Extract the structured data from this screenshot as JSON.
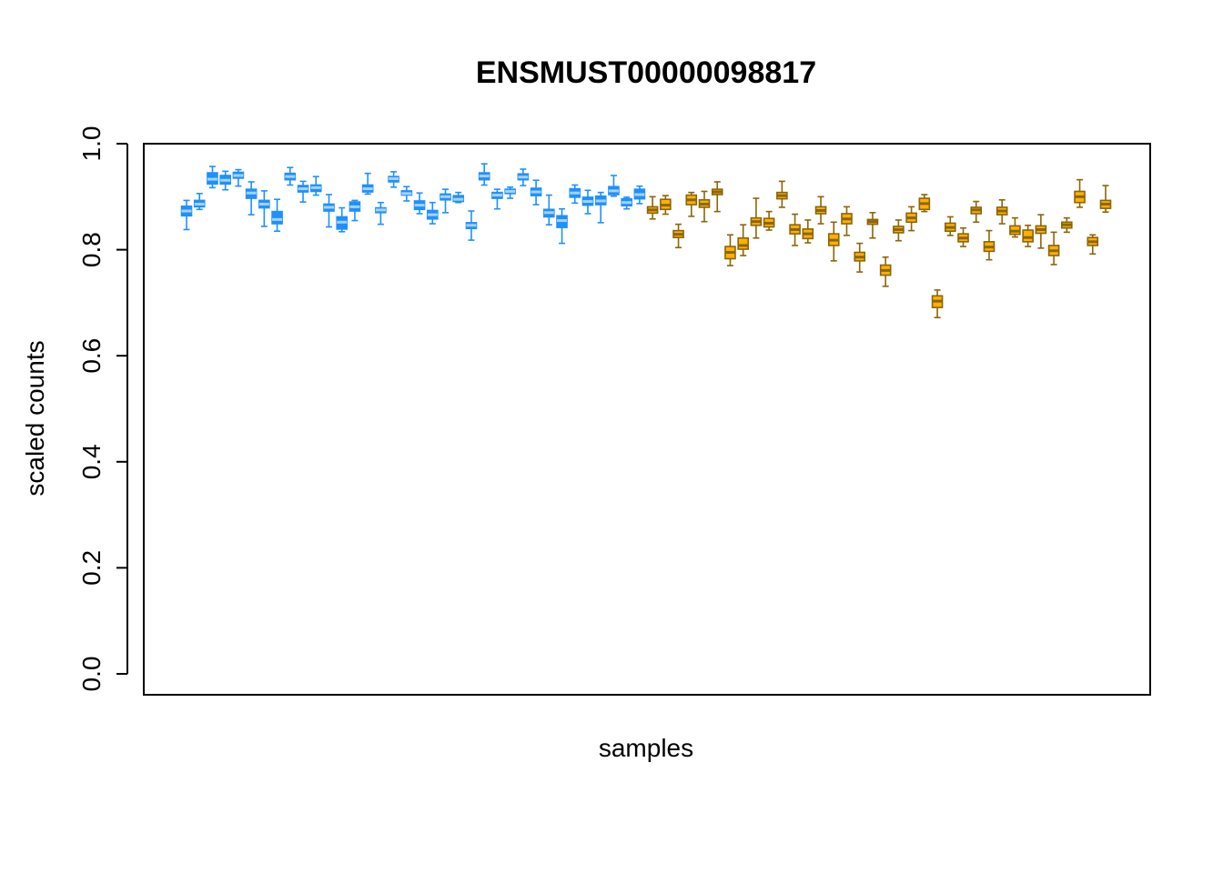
{
  "chart_data": {
    "type": "boxplot",
    "title": "ENSMUST00000098817",
    "xlabel": "samples",
    "ylabel": "scaled counts",
    "ylim": [
      0,
      1
    ],
    "yticks": [
      "0.0",
      "0.2",
      "0.4",
      "0.6",
      "0.8",
      "1.0"
    ],
    "grid": false,
    "legend": "none",
    "colors": {
      "group_a_fill": "#1e90ff",
      "group_a_stroke": "#1e90ff",
      "group_a_median": "#a6d2ff",
      "group_b_fill": "#ffb000",
      "group_b_stroke": "#8b6508",
      "group_b_median": "#8b6508"
    },
    "series": [
      {
        "group": "a",
        "boxes": [
          {
            "lo": 0.838,
            "q1": 0.864,
            "med": 0.873,
            "q3": 0.882,
            "hi": 0.893
          },
          {
            "lo": 0.876,
            "q1": 0.881,
            "med": 0.886,
            "q3": 0.893,
            "hi": 0.906
          },
          {
            "lo": 0.917,
            "q1": 0.924,
            "med": 0.933,
            "q3": 0.945,
            "hi": 0.957
          },
          {
            "lo": 0.913,
            "q1": 0.924,
            "med": 0.931,
            "q3": 0.94,
            "hi": 0.948
          },
          {
            "lo": 0.92,
            "q1": 0.935,
            "med": 0.94,
            "q3": 0.946,
            "hi": 0.951
          },
          {
            "lo": 0.866,
            "q1": 0.897,
            "med": 0.907,
            "q3": 0.914,
            "hi": 0.928
          },
          {
            "lo": 0.844,
            "q1": 0.879,
            "med": 0.886,
            "q3": 0.893,
            "hi": 0.911
          },
          {
            "lo": 0.835,
            "q1": 0.849,
            "med": 0.857,
            "q3": 0.872,
            "hi": 0.895
          },
          {
            "lo": 0.922,
            "q1": 0.932,
            "med": 0.938,
            "q3": 0.944,
            "hi": 0.955
          },
          {
            "lo": 0.89,
            "q1": 0.909,
            "med": 0.915,
            "q3": 0.921,
            "hi": 0.929
          },
          {
            "lo": 0.903,
            "q1": 0.91,
            "med": 0.917,
            "q3": 0.922,
            "hi": 0.938
          },
          {
            "lo": 0.843,
            "q1": 0.873,
            "med": 0.88,
            "q3": 0.886,
            "hi": 0.904
          },
          {
            "lo": 0.834,
            "q1": 0.839,
            "med": 0.852,
            "q3": 0.862,
            "hi": 0.879
          },
          {
            "lo": 0.855,
            "q1": 0.873,
            "med": 0.881,
            "q3": 0.89,
            "hi": 0.893
          },
          {
            "lo": 0.905,
            "q1": 0.909,
            "med": 0.915,
            "q3": 0.922,
            "hi": 0.944
          },
          {
            "lo": 0.848,
            "q1": 0.87,
            "med": 0.875,
            "q3": 0.879,
            "hi": 0.889
          },
          {
            "lo": 0.918,
            "q1": 0.928,
            "med": 0.934,
            "q3": 0.938,
            "hi": 0.947
          },
          {
            "lo": 0.892,
            "q1": 0.903,
            "med": 0.906,
            "q3": 0.911,
            "hi": 0.919
          },
          {
            "lo": 0.868,
            "q1": 0.876,
            "med": 0.884,
            "q3": 0.892,
            "hi": 0.907
          },
          {
            "lo": 0.849,
            "q1": 0.858,
            "med": 0.866,
            "q3": 0.874,
            "hi": 0.889
          },
          {
            "lo": 0.87,
            "q1": 0.894,
            "med": 0.9,
            "q3": 0.905,
            "hi": 0.914
          },
          {
            "lo": 0.889,
            "q1": 0.891,
            "med": 0.895,
            "q3": 0.902,
            "hi": 0.908
          },
          {
            "lo": 0.818,
            "q1": 0.84,
            "med": 0.846,
            "q3": 0.851,
            "hi": 0.873
          },
          {
            "lo": 0.922,
            "q1": 0.932,
            "med": 0.939,
            "q3": 0.945,
            "hi": 0.962
          },
          {
            "lo": 0.877,
            "q1": 0.897,
            "med": 0.903,
            "q3": 0.908,
            "hi": 0.914
          },
          {
            "lo": 0.897,
            "q1": 0.906,
            "med": 0.91,
            "q3": 0.914,
            "hi": 0.918
          },
          {
            "lo": 0.921,
            "q1": 0.932,
            "med": 0.937,
            "q3": 0.943,
            "hi": 0.952
          },
          {
            "lo": 0.885,
            "q1": 0.902,
            "med": 0.909,
            "q3": 0.916,
            "hi": 0.931
          },
          {
            "lo": 0.847,
            "q1": 0.862,
            "med": 0.87,
            "q3": 0.876,
            "hi": 0.903
          },
          {
            "lo": 0.812,
            "q1": 0.842,
            "med": 0.855,
            "q3": 0.864,
            "hi": 0.877
          },
          {
            "lo": 0.888,
            "q1": 0.899,
            "med": 0.907,
            "q3": 0.915,
            "hi": 0.922
          },
          {
            "lo": 0.868,
            "q1": 0.884,
            "med": 0.891,
            "q3": 0.899,
            "hi": 0.912
          },
          {
            "lo": 0.851,
            "q1": 0.885,
            "med": 0.892,
            "q3": 0.901,
            "hi": 0.908
          },
          {
            "lo": 0.901,
            "q1": 0.904,
            "med": 0.911,
            "q3": 0.919,
            "hi": 0.94
          },
          {
            "lo": 0.877,
            "q1": 0.883,
            "med": 0.889,
            "q3": 0.896,
            "hi": 0.899
          },
          {
            "lo": 0.887,
            "q1": 0.896,
            "med": 0.904,
            "q3": 0.914,
            "hi": 0.92
          }
        ]
      },
      {
        "group": "b",
        "boxes": [
          {
            "lo": 0.858,
            "q1": 0.869,
            "med": 0.875,
            "q3": 0.881,
            "hi": 0.9
          },
          {
            "lo": 0.867,
            "q1": 0.876,
            "med": 0.884,
            "q3": 0.895,
            "hi": 0.902
          },
          {
            "lo": 0.804,
            "q1": 0.823,
            "med": 0.829,
            "q3": 0.836,
            "hi": 0.848
          },
          {
            "lo": 0.863,
            "q1": 0.885,
            "med": 0.894,
            "q3": 0.903,
            "hi": 0.908
          },
          {
            "lo": 0.853,
            "q1": 0.88,
            "med": 0.886,
            "q3": 0.894,
            "hi": 0.91
          },
          {
            "lo": 0.872,
            "q1": 0.904,
            "med": 0.909,
            "q3": 0.914,
            "hi": 0.928
          },
          {
            "lo": 0.77,
            "q1": 0.783,
            "med": 0.795,
            "q3": 0.806,
            "hi": 0.828
          },
          {
            "lo": 0.789,
            "q1": 0.801,
            "med": 0.808,
            "q3": 0.822,
            "hi": 0.847
          },
          {
            "lo": 0.822,
            "q1": 0.846,
            "med": 0.853,
            "q3": 0.86,
            "hi": 0.897
          },
          {
            "lo": 0.837,
            "q1": 0.843,
            "med": 0.85,
            "q3": 0.859,
            "hi": 0.872
          },
          {
            "lo": 0.88,
            "q1": 0.896,
            "med": 0.902,
            "q3": 0.908,
            "hi": 0.929
          },
          {
            "lo": 0.808,
            "q1": 0.83,
            "med": 0.838,
            "q3": 0.847,
            "hi": 0.867
          },
          {
            "lo": 0.813,
            "q1": 0.821,
            "med": 0.83,
            "q3": 0.839,
            "hi": 0.856
          },
          {
            "lo": 0.849,
            "q1": 0.868,
            "med": 0.874,
            "q3": 0.881,
            "hi": 0.9
          },
          {
            "lo": 0.779,
            "q1": 0.808,
            "med": 0.818,
            "q3": 0.83,
            "hi": 0.852
          },
          {
            "lo": 0.827,
            "q1": 0.849,
            "med": 0.858,
            "q3": 0.868,
            "hi": 0.881
          },
          {
            "lo": 0.758,
            "q1": 0.779,
            "med": 0.786,
            "q3": 0.795,
            "hi": 0.812
          },
          {
            "lo": 0.822,
            "q1": 0.848,
            "med": 0.853,
            "q3": 0.857,
            "hi": 0.87
          },
          {
            "lo": 0.731,
            "q1": 0.752,
            "med": 0.761,
            "q3": 0.771,
            "hi": 0.786
          },
          {
            "lo": 0.817,
            "q1": 0.832,
            "med": 0.838,
            "q3": 0.844,
            "hi": 0.856
          },
          {
            "lo": 0.836,
            "q1": 0.852,
            "med": 0.86,
            "q3": 0.869,
            "hi": 0.881
          },
          {
            "lo": 0.872,
            "q1": 0.876,
            "med": 0.887,
            "q3": 0.897,
            "hi": 0.904
          },
          {
            "lo": 0.672,
            "q1": 0.691,
            "med": 0.703,
            "q3": 0.713,
            "hi": 0.724
          },
          {
            "lo": 0.827,
            "q1": 0.835,
            "med": 0.842,
            "q3": 0.85,
            "hi": 0.862
          },
          {
            "lo": 0.806,
            "q1": 0.815,
            "med": 0.822,
            "q3": 0.83,
            "hi": 0.841
          },
          {
            "lo": 0.852,
            "q1": 0.868,
            "med": 0.875,
            "q3": 0.88,
            "hi": 0.891
          },
          {
            "lo": 0.781,
            "q1": 0.797,
            "med": 0.805,
            "q3": 0.815,
            "hi": 0.836
          },
          {
            "lo": 0.849,
            "q1": 0.866,
            "med": 0.873,
            "q3": 0.88,
            "hi": 0.894
          },
          {
            "lo": 0.824,
            "q1": 0.829,
            "med": 0.835,
            "q3": 0.845,
            "hi": 0.86
          },
          {
            "lo": 0.806,
            "q1": 0.815,
            "med": 0.823,
            "q3": 0.837,
            "hi": 0.846
          },
          {
            "lo": 0.803,
            "q1": 0.831,
            "med": 0.838,
            "q3": 0.845,
            "hi": 0.866
          },
          {
            "lo": 0.772,
            "q1": 0.789,
            "med": 0.798,
            "q3": 0.808,
            "hi": 0.833
          },
          {
            "lo": 0.833,
            "q1": 0.841,
            "med": 0.847,
            "q3": 0.852,
            "hi": 0.86
          },
          {
            "lo": 0.88,
            "q1": 0.889,
            "med": 0.9,
            "q3": 0.91,
            "hi": 0.932
          },
          {
            "lo": 0.792,
            "q1": 0.808,
            "med": 0.815,
            "q3": 0.823,
            "hi": 0.828
          },
          {
            "lo": 0.871,
            "q1": 0.878,
            "med": 0.886,
            "q3": 0.893,
            "hi": 0.921
          }
        ]
      }
    ]
  }
}
